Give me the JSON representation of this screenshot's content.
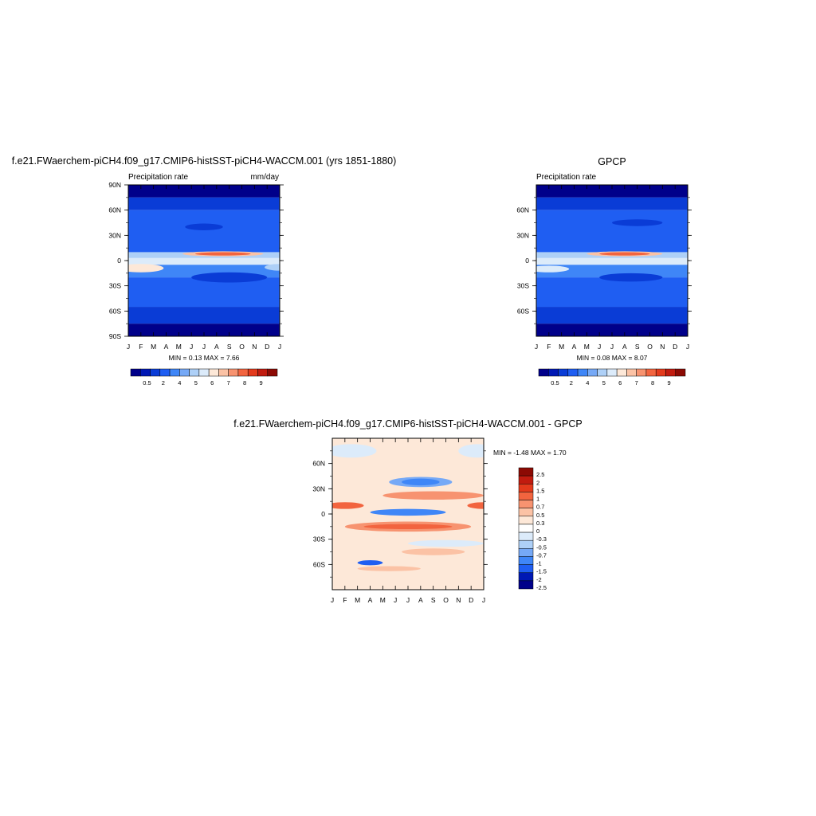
{
  "panels": {
    "top_left": {
      "title": "f.e21.FWaerchem-piCH4.f09_g17.CMIP6-histSST-piCH4-WACCM.001 (yrs 1851-1880)",
      "left_label": "Precipitation rate",
      "right_label": "mm/day",
      "min_max": "MIN =   0.13 MAX =   7.66"
    },
    "top_right": {
      "title": "GPCP",
      "left_label": "Precipitation rate",
      "right_label": "",
      "min_max": "MIN =   0.08 MAX =   8.07"
    },
    "bottom": {
      "title": "f.e21.FWaerchem-piCH4.f09_g17.CMIP6-histSST-piCH4-WACCM.001 - GPCP",
      "min_max": "MIN =  -1.48 MAX =   1.70"
    }
  },
  "chart_data": [
    {
      "type": "heatmap",
      "title": "f.e21.FWaerchem-piCH4.f09_g17.CMIP6-histSST-piCH4-WACCM.001 (yrs 1851-1880)",
      "variable": "Precipitation rate",
      "units": "mm/day",
      "x_ticks": [
        "J",
        "F",
        "M",
        "A",
        "M",
        "J",
        "J",
        "A",
        "S",
        "O",
        "N",
        "D",
        "J"
      ],
      "y_ticks": [
        "90N",
        "60N",
        "30N",
        "0",
        "30S",
        "60S",
        "90S"
      ],
      "y_range": [
        90,
        -90
      ],
      "min": 0.13,
      "max": 7.66,
      "colorbar_labels": [
        "0.5",
        "2",
        "4",
        "5",
        "6",
        "7",
        "8",
        "9"
      ],
      "colors": [
        "#00008a",
        "#0018b4",
        "#0a3cd6",
        "#1f5ef2",
        "#3f86f7",
        "#76a9f6",
        "#aed0f7",
        "#dcebfa",
        "#fde8d8",
        "#fbc2a5",
        "#f79370",
        "#f2643f",
        "#e33a1c",
        "#c11b0f",
        "#8c0a04"
      ],
      "bands": [
        {
          "lat": [
            90,
            75
          ],
          "color": "#00008a"
        },
        {
          "lat": [
            75,
            60
          ],
          "color": "#0a3cd6"
        },
        {
          "lat": [
            60,
            10
          ],
          "color": "#1f5ef2"
        },
        {
          "lat": [
            10,
            3
          ],
          "color": "#aed0f7"
        },
        {
          "lat": [
            3,
            -5
          ],
          "color": "#dcebfa"
        },
        {
          "lat": [
            -5,
            -20
          ],
          "color": "#3f86f7"
        },
        {
          "lat": [
            -20,
            -55
          ],
          "color": "#1f5ef2"
        },
        {
          "lat": [
            -55,
            -75
          ],
          "color": "#0a3cd6"
        },
        {
          "lat": [
            -75,
            -90
          ],
          "color": "#00008a"
        }
      ],
      "features": [
        {
          "month": 7.5,
          "lat": 8,
          "rx": 3.2,
          "rlat": 3,
          "color": "#fbc2a5"
        },
        {
          "month": 7.5,
          "lat": 8,
          "rx": 2.2,
          "rlat": 2,
          "color": "#f2643f"
        },
        {
          "month": 1.0,
          "lat": -9,
          "rx": 1.8,
          "rlat": 5,
          "color": "#fde8d8"
        },
        {
          "month": 12.0,
          "lat": -8,
          "rx": 1.2,
          "rlat": 4,
          "color": "#aed0f7"
        },
        {
          "month": 6.0,
          "lat": 40,
          "rx": 1.5,
          "rlat": 4,
          "color": "#0a3cd6"
        },
        {
          "month": 8.0,
          "lat": -20,
          "rx": 3.0,
          "rlat": 6,
          "color": "#0a3cd6"
        }
      ]
    },
    {
      "type": "heatmap",
      "title": "GPCP",
      "variable": "Precipitation rate",
      "x_ticks": [
        "J",
        "F",
        "M",
        "A",
        "M",
        "J",
        "J",
        "A",
        "S",
        "O",
        "N",
        "D",
        "J"
      ],
      "y_ticks": [
        "60N",
        "30N",
        "0",
        "30S",
        "60S"
      ],
      "y_range": [
        90,
        -90
      ],
      "min": 0.08,
      "max": 8.07,
      "colorbar_labels": [
        "0.5",
        "2",
        "4",
        "5",
        "6",
        "7",
        "8",
        "9"
      ],
      "colors": [
        "#00008a",
        "#0018b4",
        "#0a3cd6",
        "#1f5ef2",
        "#3f86f7",
        "#76a9f6",
        "#aed0f7",
        "#dcebfa",
        "#fde8d8",
        "#fbc2a5",
        "#f79370",
        "#f2643f",
        "#e33a1c",
        "#c11b0f",
        "#8c0a04"
      ],
      "bands": [
        {
          "lat": [
            90,
            75
          ],
          "color": "#00008a"
        },
        {
          "lat": [
            75,
            60
          ],
          "color": "#0a3cd6"
        },
        {
          "lat": [
            60,
            10
          ],
          "color": "#1f5ef2"
        },
        {
          "lat": [
            10,
            3
          ],
          "color": "#aed0f7"
        },
        {
          "lat": [
            3,
            -5
          ],
          "color": "#dcebfa"
        },
        {
          "lat": [
            -5,
            -20
          ],
          "color": "#3f86f7"
        },
        {
          "lat": [
            -20,
            -55
          ],
          "color": "#1f5ef2"
        },
        {
          "lat": [
            -55,
            -75
          ],
          "color": "#0a3cd6"
        },
        {
          "lat": [
            -75,
            -90
          ],
          "color": "#00008a"
        }
      ],
      "features": [
        {
          "month": 7.0,
          "lat": 8,
          "rx": 3.0,
          "rlat": 3,
          "color": "#fbc2a5"
        },
        {
          "month": 7.0,
          "lat": 8,
          "rx": 2.0,
          "rlat": 2,
          "color": "#f2643f"
        },
        {
          "month": 1.0,
          "lat": -10,
          "rx": 1.6,
          "rlat": 4,
          "color": "#dcebfa"
        },
        {
          "month": 7.5,
          "lat": -20,
          "rx": 2.5,
          "rlat": 5,
          "color": "#0a3cd6"
        },
        {
          "month": 8.0,
          "lat": 45,
          "rx": 2.0,
          "rlat": 4,
          "color": "#0a3cd6"
        }
      ]
    },
    {
      "type": "heatmap",
      "title": "f.e21.FWaerchem-piCH4.f09_g17.CMIP6-histSST-piCH4-WACCM.001 - GPCP",
      "x_ticks": [
        "J",
        "F",
        "M",
        "A",
        "M",
        "J",
        "J",
        "A",
        "S",
        "O",
        "N",
        "D",
        "J"
      ],
      "y_ticks": [
        "60N",
        "30N",
        "0",
        "30S",
        "60S"
      ],
      "y_range": [
        90,
        -90
      ],
      "min": -1.48,
      "max": 1.7,
      "colorbar_labels": [
        "2.5",
        "2",
        "1.5",
        "1",
        "0.7",
        "0.5",
        "0.3",
        "0",
        "-0.3",
        "-0.5",
        "-0.7",
        "-1",
        "-1.5",
        "-2",
        "-2.5"
      ],
      "colors": [
        "#8c0a04",
        "#c11b0f",
        "#e33a1c",
        "#f2643f",
        "#f79370",
        "#fbc2a5",
        "#fde8d8",
        "#ffffff",
        "#dcebfa",
        "#aed0f7",
        "#76a9f6",
        "#3f86f7",
        "#1f5ef2",
        "#0018b4",
        "#00008a"
      ],
      "bands": [
        {
          "lat": [
            90,
            -90
          ],
          "color": "#fde8d8"
        }
      ],
      "features": [
        {
          "month": 1.5,
          "lat": 75,
          "rx": 2.0,
          "rlat": 8,
          "color": "#dcebfa"
        },
        {
          "month": 11.5,
          "lat": 75,
          "rx": 1.5,
          "rlat": 8,
          "color": "#dcebfa"
        },
        {
          "month": 7.0,
          "lat": 38,
          "rx": 2.5,
          "rlat": 6,
          "color": "#76a9f6"
        },
        {
          "month": 7.0,
          "lat": 38,
          "rx": 1.5,
          "rlat": 4,
          "color": "#3f86f7"
        },
        {
          "month": 8.0,
          "lat": 22,
          "rx": 4.0,
          "rlat": 5,
          "color": "#f79370"
        },
        {
          "month": 1.0,
          "lat": 10,
          "rx": 1.5,
          "rlat": 4,
          "color": "#f2643f"
        },
        {
          "month": 12.0,
          "lat": 10,
          "rx": 1.3,
          "rlat": 4,
          "color": "#f2643f"
        },
        {
          "month": 6.0,
          "lat": 2,
          "rx": 3.0,
          "rlat": 4,
          "color": "#3f86f7"
        },
        {
          "month": 6.0,
          "lat": -15,
          "rx": 5.0,
          "rlat": 6,
          "color": "#f79370"
        },
        {
          "month": 6.0,
          "lat": -15,
          "rx": 3.5,
          "rlat": 3,
          "color": "#f2643f"
        },
        {
          "month": 8.0,
          "lat": -45,
          "rx": 2.5,
          "rlat": 4,
          "color": "#fbc2a5"
        },
        {
          "month": 3.0,
          "lat": -58,
          "rx": 1.0,
          "rlat": 3,
          "color": "#1f5ef2"
        },
        {
          "month": 4.5,
          "lat": -65,
          "rx": 2.5,
          "rlat": 3,
          "color": "#fbc2a5"
        },
        {
          "month": 9.0,
          "lat": -35,
          "rx": 3.0,
          "rlat": 4,
          "color": "#dcebfa"
        }
      ]
    }
  ]
}
